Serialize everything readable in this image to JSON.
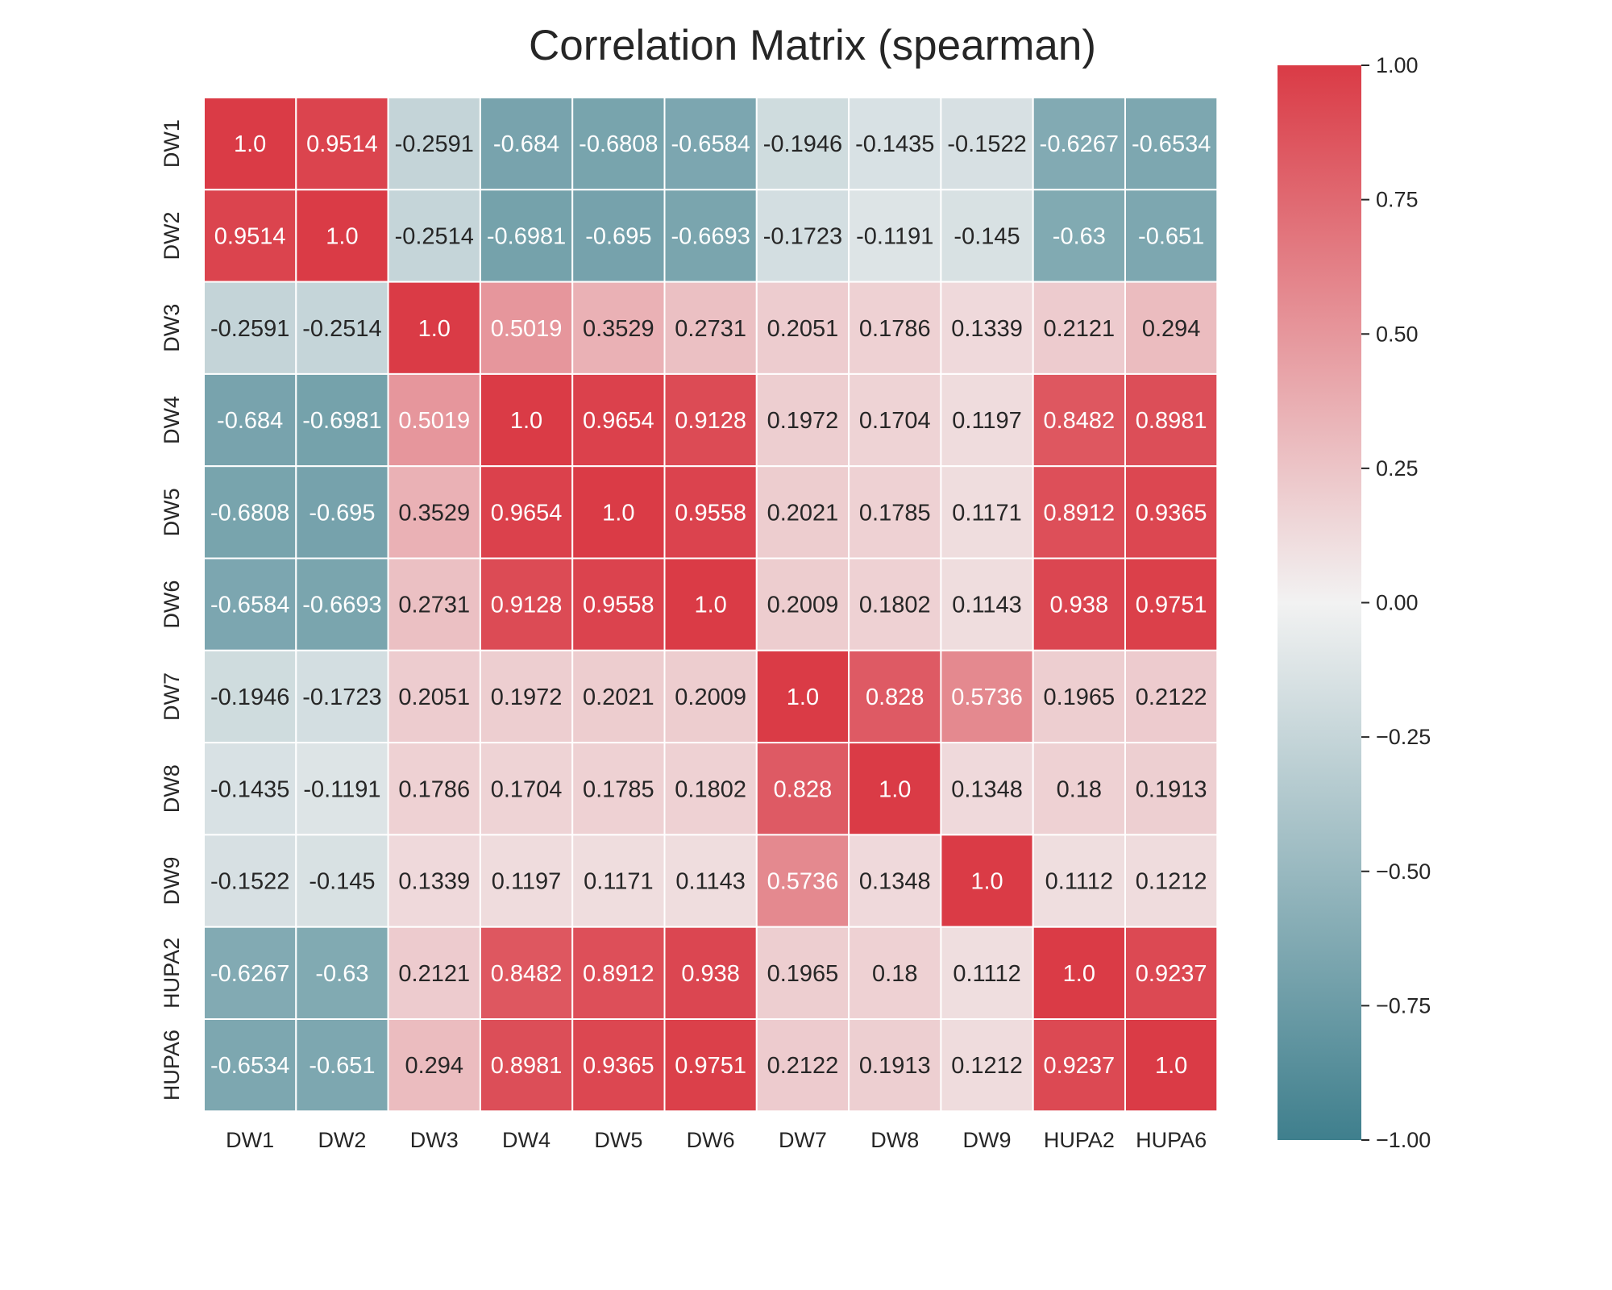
{
  "chart_data": {
    "type": "heatmap",
    "title": "Correlation Matrix (spearman)",
    "xlabel": "",
    "ylabel": "",
    "x_labels": [
      "DW1",
      "DW2",
      "DW3",
      "DW4",
      "DW5",
      "DW6",
      "DW7",
      "DW8",
      "DW9",
      "HUPA2",
      "HUPA6"
    ],
    "y_labels": [
      "DW1",
      "DW2",
      "DW3",
      "DW4",
      "DW5",
      "DW6",
      "DW7",
      "DW8",
      "DW9",
      "HUPA2",
      "HUPA6"
    ],
    "cell_labels": [
      [
        "1.0",
        "0.9514",
        "-0.2591",
        "-0.684",
        "-0.6808",
        "-0.6584",
        "-0.1946",
        "-0.1435",
        "-0.1522",
        "-0.6267",
        "-0.6534"
      ],
      [
        "0.9514",
        "1.0",
        "-0.2514",
        "-0.6981",
        "-0.695",
        "-0.6693",
        "-0.1723",
        "-0.1191",
        "-0.145",
        "-0.63",
        "-0.651"
      ],
      [
        "-0.2591",
        "-0.2514",
        "1.0",
        "0.5019",
        "0.3529",
        "0.2731",
        "0.2051",
        "0.1786",
        "0.1339",
        "0.2121",
        "0.294"
      ],
      [
        "-0.684",
        "-0.6981",
        "0.5019",
        "1.0",
        "0.9654",
        "0.9128",
        "0.1972",
        "0.1704",
        "0.1197",
        "0.8482",
        "0.8981"
      ],
      [
        "-0.6808",
        "-0.695",
        "0.3529",
        "0.9654",
        "1.0",
        "0.9558",
        "0.2021",
        "0.1785",
        "0.1171",
        "0.8912",
        "0.9365"
      ],
      [
        "-0.6584",
        "-0.6693",
        "0.2731",
        "0.9128",
        "0.9558",
        "1.0",
        "0.2009",
        "0.1802",
        "0.1143",
        "0.938",
        "0.9751"
      ],
      [
        "-0.1946",
        "-0.1723",
        "0.2051",
        "0.1972",
        "0.2021",
        "0.2009",
        "1.0",
        "0.828",
        "0.5736",
        "0.1965",
        "0.2122"
      ],
      [
        "-0.1435",
        "-0.1191",
        "0.1786",
        "0.1704",
        "0.1785",
        "0.1802",
        "0.828",
        "1.0",
        "0.1348",
        "0.18",
        "0.1913"
      ],
      [
        "-0.1522",
        "-0.145",
        "0.1339",
        "0.1197",
        "0.1171",
        "0.1143",
        "0.5736",
        "0.1348",
        "1.0",
        "0.1112",
        "0.1212"
      ],
      [
        "-0.6267",
        "-0.63",
        "0.2121",
        "0.8482",
        "0.8912",
        "0.938",
        "0.1965",
        "0.18",
        "0.1112",
        "1.0",
        "0.9237"
      ],
      [
        "-0.6534",
        "-0.651",
        "0.294",
        "0.8981",
        "0.9365",
        "0.9751",
        "0.2122",
        "0.1913",
        "0.1212",
        "0.9237",
        "1.0"
      ]
    ],
    "colorbar": {
      "vmin": -1.0,
      "vmax": 1.0,
      "ticks": [
        1.0,
        0.75,
        0.5,
        0.25,
        0.0,
        -0.25,
        -0.5,
        -0.75,
        -1.0
      ],
      "tick_labels": [
        "1.00",
        "0.75",
        "0.50",
        "0.25",
        "0.00",
        "−0.25",
        "−0.50",
        "−0.75",
        "−1.00"
      ]
    },
    "colors": {
      "neg": "#3f7f8d",
      "mid": "#f2f2f2",
      "pos": "#da3b46",
      "text_dark": "#262626",
      "text_light": "#ffffff",
      "grid_line": "#ffffff"
    },
    "grid": true
  }
}
